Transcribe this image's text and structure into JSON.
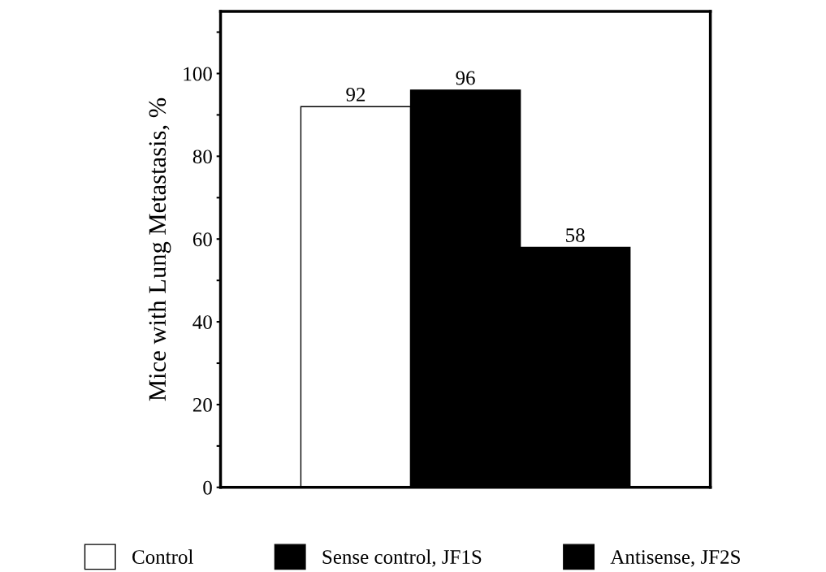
{
  "chart_data": {
    "type": "bar",
    "ylabel": "Mice with Lung Metastasis, %",
    "categories": [
      null
    ],
    "series": [
      {
        "name": "Control",
        "color": "#ffffff",
        "values": [
          92
        ]
      },
      {
        "name": "Sense control, JF1S",
        "color": "#000000",
        "values": [
          96
        ]
      },
      {
        "name": "Antisense, JF2S",
        "color": "#000000",
        "values": [
          58
        ]
      }
    ],
    "ylim": [
      0,
      115
    ],
    "yticks": [
      0,
      {
        "value": 10,
        "label": null
      },
      20,
      {
        "value": 30,
        "label": null
      },
      40,
      {
        "value": 50,
        "label": null
      },
      60,
      {
        "value": 70,
        "label": null
      },
      80,
      {
        "value": 90,
        "label": null
      },
      100,
      {
        "value": 110,
        "label": null
      }
    ],
    "data_labels": true,
    "legend": "bottom",
    "grid": false
  }
}
